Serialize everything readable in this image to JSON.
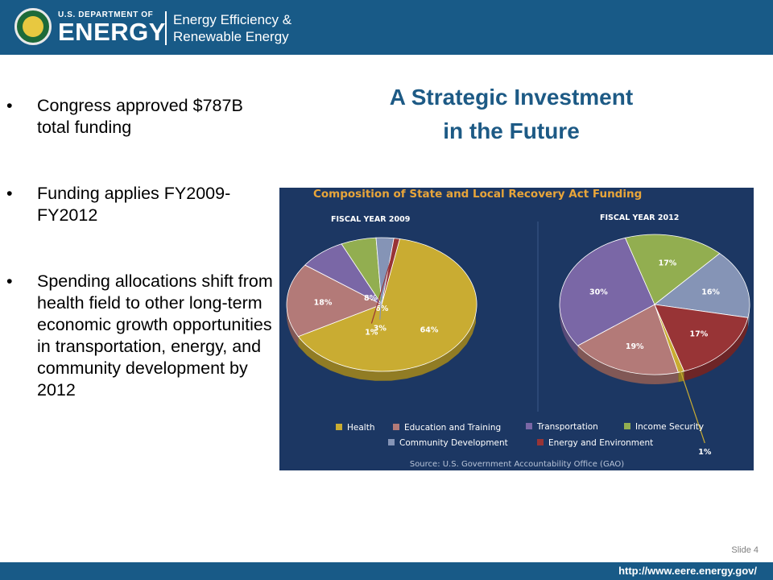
{
  "header": {
    "dept": "U.S. DEPARTMENT OF",
    "energy": "ENERGY",
    "office_line1": "Energy Efficiency &",
    "office_line2": "Renewable Energy"
  },
  "slide": {
    "title_line1": "A Strategic Investment",
    "title_line2": "in the Future",
    "bullet_char": "•",
    "bullets": [
      "Congress approved $787B total funding",
      "Funding applies FY2009-FY2012",
      "Spending allocations shift from health field to other long-term economic growth opportunities in transportation, energy, and community development by 2012"
    ],
    "slide_number": "Slide 4",
    "footer_url": "http://www.eere.energy.gov/"
  },
  "chart_data": {
    "type": "pie",
    "title": "Composition of State and Local Recovery Act Funding",
    "source": "Source: U.S. Government Accountability Office (GAO)",
    "categories": [
      "Health",
      "Education and Training",
      "Transportation",
      "Income Security",
      "Community Development",
      "Energy and Environment"
    ],
    "colors": [
      "#c9ac32",
      "#b37a78",
      "#7a67a6",
      "#92ae50",
      "#8594b6",
      "#983436"
    ],
    "background": "#1c3763",
    "title_color": "#e8a53a",
    "pies": [
      {
        "name": "FISCAL YEAR 2009",
        "values": [
          64,
          18,
          8,
          6,
          3,
          1
        ],
        "labels": [
          "64%",
          "18%",
          "8%",
          "6%",
          "3%",
          "1%"
        ]
      },
      {
        "name": "FISCAL YEAR 2012",
        "values": [
          1,
          19,
          30,
          17,
          16,
          17
        ],
        "labels": [
          "1%",
          "19%",
          "30%",
          "17%",
          "16%",
          "17%"
        ]
      }
    ]
  }
}
